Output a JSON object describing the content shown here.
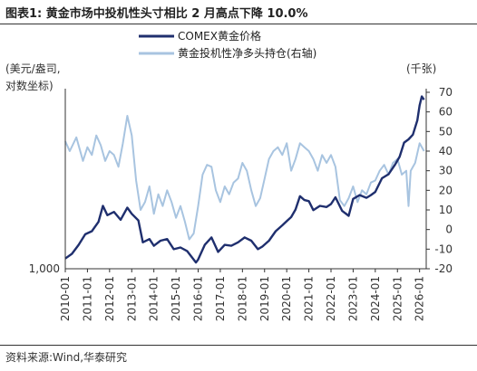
{
  "title": "图表1:  黄金市场中投机性头寸相比 2 月高点下降 10.0%",
  "source": "资料来源:Wind,华泰研究",
  "chart_data": {
    "type": "line",
    "left_axis": {
      "label_line1": "(美元/盎司,",
      "label_line2": "对数坐标)",
      "tick_label": "1,000",
      "scale": "log",
      "range": [
        1000,
        5200
      ]
    },
    "right_axis": {
      "label": "(千张)",
      "ticks": [
        70,
        60,
        50,
        40,
        30,
        20,
        10,
        0,
        -10,
        -20
      ],
      "range": [
        -20,
        70
      ]
    },
    "x_ticks": [
      "2010-01",
      "2011-01",
      "2012-01",
      "2013-01",
      "2014-01",
      "2015-01",
      "2016-01",
      "2017-01",
      "2018-01",
      "2019-01",
      "2020-01",
      "2021-01",
      "2022-01",
      "2023-01",
      "2024-01",
      "2025-01",
      "2026-01"
    ],
    "x_range": [
      2010.0,
      2026.3
    ],
    "series": [
      {
        "name": "COMEX黄金价格",
        "axis": "left",
        "color": "#1f2f6e",
        "x": [
          2010.0,
          2010.3,
          2010.6,
          2010.9,
          2011.2,
          2011.5,
          2011.7,
          2011.9,
          2012.2,
          2012.5,
          2012.8,
          2013.0,
          2013.3,
          2013.5,
          2013.8,
          2014.0,
          2014.3,
          2014.6,
          2014.9,
          2015.2,
          2015.5,
          2015.9,
          2016.0,
          2016.3,
          2016.6,
          2016.9,
          2017.2,
          2017.5,
          2017.8,
          2018.1,
          2018.4,
          2018.7,
          2018.9,
          2019.2,
          2019.5,
          2019.8,
          2020.0,
          2020.2,
          2020.4,
          2020.6,
          2020.8,
          2021.0,
          2021.2,
          2021.5,
          2021.8,
          2022.0,
          2022.2,
          2022.5,
          2022.8,
          2023.0,
          2023.3,
          2023.6,
          2023.8,
          2024.0,
          2024.3,
          2024.6,
          2024.9,
          2025.1,
          2025.3,
          2025.5,
          2025.7,
          2025.9,
          2026.0,
          2026.1,
          2026.2
        ],
        "y": [
          1100,
          1150,
          1250,
          1380,
          1420,
          1550,
          1800,
          1650,
          1700,
          1580,
          1770,
          1670,
          1570,
          1280,
          1320,
          1240,
          1300,
          1320,
          1200,
          1220,
          1180,
          1060,
          1090,
          1250,
          1340,
          1170,
          1250,
          1240,
          1280,
          1340,
          1300,
          1200,
          1230,
          1300,
          1420,
          1500,
          1560,
          1620,
          1740,
          1970,
          1900,
          1880,
          1730,
          1800,
          1780,
          1830,
          1950,
          1720,
          1640,
          1920,
          1990,
          1940,
          1990,
          2050,
          2330,
          2420,
          2650,
          2850,
          3250,
          3350,
          3500,
          4000,
          4600,
          5000,
          4850
        ]
      },
      {
        "name": "黄金投机性净多头持仓(右轴)",
        "axis": "right",
        "color": "#a8c4e0",
        "x": [
          2010.0,
          2010.2,
          2010.5,
          2010.8,
          2011.0,
          2011.2,
          2011.4,
          2011.6,
          2011.8,
          2012.0,
          2012.2,
          2012.4,
          2012.6,
          2012.8,
          2013.0,
          2013.2,
          2013.4,
          2013.6,
          2013.8,
          2014.0,
          2014.2,
          2014.4,
          2014.6,
          2014.8,
          2015.0,
          2015.2,
          2015.4,
          2015.6,
          2015.8,
          2016.0,
          2016.2,
          2016.4,
          2016.6,
          2016.8,
          2017.0,
          2017.2,
          2017.4,
          2017.6,
          2017.8,
          2018.0,
          2018.2,
          2018.4,
          2018.6,
          2018.8,
          2019.0,
          2019.2,
          2019.4,
          2019.6,
          2019.8,
          2020.0,
          2020.2,
          2020.4,
          2020.6,
          2020.8,
          2021.0,
          2021.2,
          2021.4,
          2021.6,
          2021.8,
          2022.0,
          2022.2,
          2022.4,
          2022.6,
          2022.8,
          2023.0,
          2023.2,
          2023.4,
          2023.6,
          2023.8,
          2024.0,
          2024.2,
          2024.4,
          2024.6,
          2024.8,
          2025.0,
          2025.2,
          2025.4,
          2025.5,
          2025.6,
          2025.8,
          2026.0,
          2026.2
        ],
        "y": [
          45,
          40,
          47,
          35,
          42,
          38,
          48,
          43,
          35,
          40,
          38,
          32,
          44,
          58,
          48,
          25,
          10,
          14,
          22,
          8,
          18,
          12,
          20,
          14,
          6,
          12,
          4,
          -5,
          -2,
          12,
          28,
          33,
          32,
          20,
          14,
          22,
          18,
          24,
          26,
          34,
          30,
          20,
          12,
          16,
          26,
          36,
          40,
          42,
          38,
          44,
          30,
          36,
          44,
          42,
          40,
          36,
          30,
          38,
          34,
          38,
          32,
          15,
          12,
          16,
          22,
          14,
          20,
          18,
          24,
          25,
          30,
          33,
          28,
          34,
          36,
          28,
          30,
          12,
          30,
          34,
          44,
          40
        ]
      }
    ]
  }
}
